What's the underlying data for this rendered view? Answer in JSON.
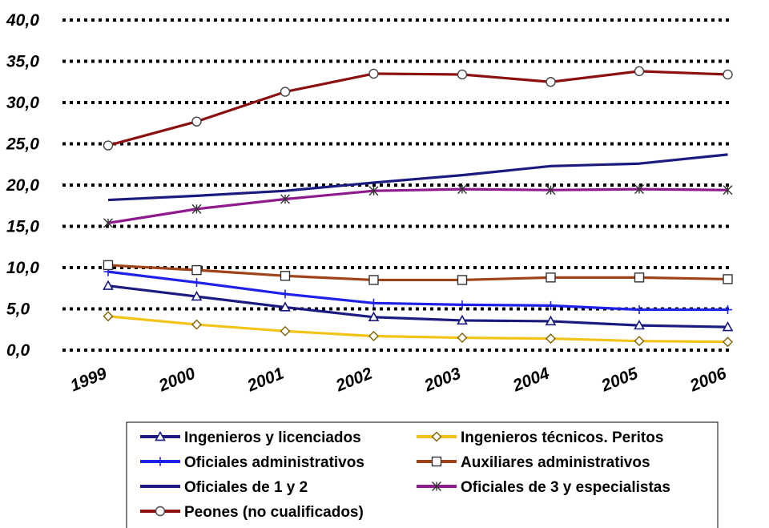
{
  "chart_data": {
    "type": "line",
    "title": "",
    "xlabel": "",
    "ylabel": "",
    "x": [
      "1999",
      "2000",
      "2001",
      "2002",
      "2003",
      "2004",
      "2005",
      "2006"
    ],
    "ylim": [
      0,
      40
    ],
    "yticks": [
      "0,0",
      "5,0",
      "10,0",
      "15,0",
      "20,0",
      "25,0",
      "30,0",
      "35,0",
      "40,0"
    ],
    "grid": "horizontal dotted",
    "legend_position": "bottom",
    "series": [
      {
        "name": "Ingenieros y licenciados",
        "color": "#1a1a80",
        "marker": "triangle",
        "values": [
          7.8,
          6.5,
          5.2,
          4.0,
          3.6,
          3.5,
          3.0,
          2.8
        ]
      },
      {
        "name": "Ingenieros técnicos. Peritos",
        "color": "#f2c318",
        "marker": "diamond",
        "values": [
          4.1,
          3.1,
          2.3,
          1.7,
          1.5,
          1.4,
          1.1,
          1.0
        ]
      },
      {
        "name": "Oficiales administrativos",
        "color": "#1e22e6",
        "marker": "plus",
        "values": [
          9.5,
          8.2,
          6.8,
          5.7,
          5.5,
          5.4,
          4.9,
          4.9
        ]
      },
      {
        "name": "Auxiliares administrativos",
        "color": "#a0421a",
        "marker": "square",
        "values": [
          10.3,
          9.7,
          9.0,
          8.5,
          8.5,
          8.8,
          8.8,
          8.6
        ]
      },
      {
        "name": "Oficiales de 1 y 2",
        "color": "#1a1a80",
        "marker": "dash",
        "values": [
          18.2,
          18.7,
          19.3,
          20.3,
          21.2,
          22.3,
          22.6,
          23.7
        ]
      },
      {
        "name": "Oficiales de 3 y especialistas",
        "color": "#8e1a8e",
        "marker": "star",
        "values": [
          15.4,
          17.1,
          18.3,
          19.3,
          19.5,
          19.4,
          19.5,
          19.4
        ]
      },
      {
        "name": "Peones (no cualificados)",
        "color": "#8c1010",
        "marker": "circle",
        "values": [
          24.8,
          27.7,
          31.3,
          33.5,
          33.4,
          32.5,
          33.8,
          33.4
        ]
      }
    ]
  }
}
